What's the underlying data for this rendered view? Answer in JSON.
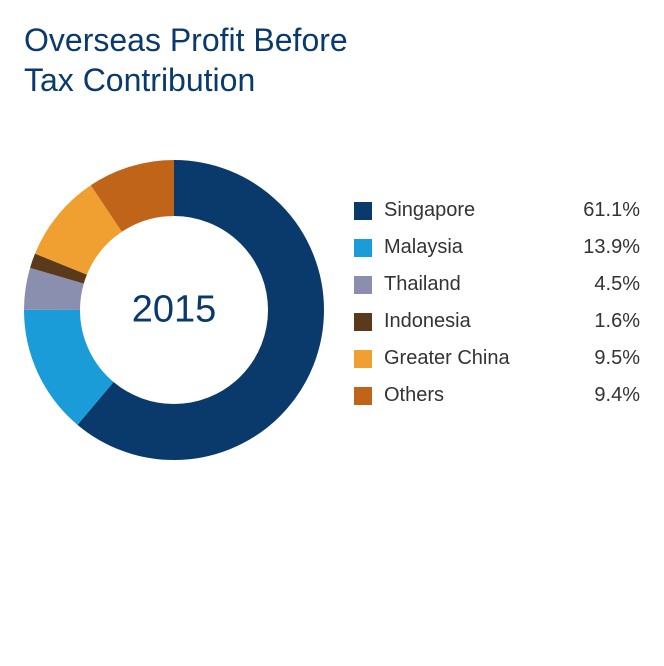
{
  "title_line1": "Overseas Profit Before",
  "title_line2": "Tax Contribution",
  "title_color": "#0a3a6b",
  "title_fontsize": 32,
  "chart": {
    "type": "donut",
    "center_label": "2015",
    "center_label_color": "#0a3a6b",
    "center_label_fontsize": 38,
    "background_color": "#ffffff",
    "outer_radius": 150,
    "inner_radius": 94,
    "stroke_width": 56,
    "start_angle_deg": 0,
    "segments": [
      {
        "label": "Singapore",
        "value": 61.1,
        "pct_label": "61.1%",
        "color": "#0a3a6b"
      },
      {
        "label": "Malaysia",
        "value": 13.9,
        "pct_label": "13.9%",
        "color": "#1a9cd8"
      },
      {
        "label": "Thailand",
        "value": 4.5,
        "pct_label": "4.5%",
        "color": "#8a8fb0"
      },
      {
        "label": "Indonesia",
        "value": 1.6,
        "pct_label": "1.6%",
        "color": "#5a3a1a"
      },
      {
        "label": "Greater China",
        "value": 9.5,
        "pct_label": "9.5%",
        "color": "#f0a030"
      },
      {
        "label": "Others",
        "value": 9.4,
        "pct_label": "9.4%",
        "color": "#c0641a"
      }
    ]
  },
  "legend": {
    "fontsize": 20,
    "text_color": "#333333",
    "swatch_size": 18,
    "row_gap": 14
  }
}
